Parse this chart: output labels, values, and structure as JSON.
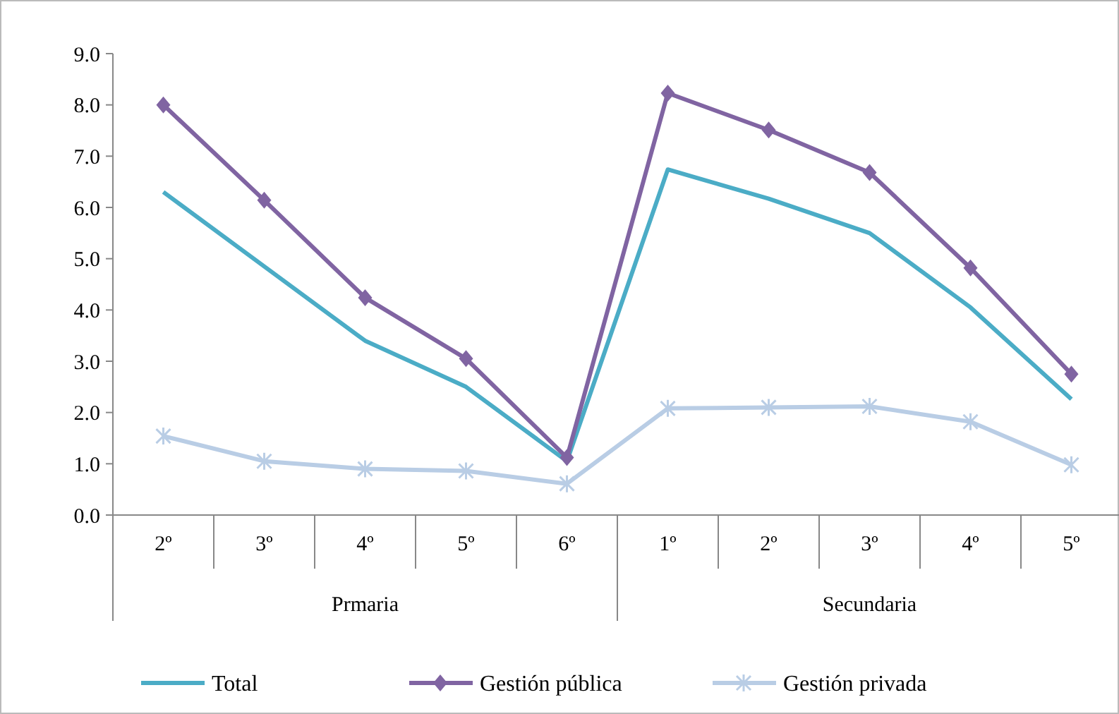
{
  "chart_data": {
    "type": "line",
    "categories": [
      "2º",
      "3º",
      "4º",
      "5º",
      "6º",
      "1º",
      "2º",
      "3º",
      "4º",
      "5º"
    ],
    "annotations": [
      "Prmaria",
      "Secundaria"
    ],
    "ylim": [
      0,
      9
    ],
    "yticks": [
      {
        "value": 0,
        "label": "0.0"
      },
      {
        "value": 1,
        "label": "1.0"
      },
      {
        "value": 2,
        "label": "2.0"
      },
      {
        "value": 3,
        "label": "3.0"
      },
      {
        "value": 4,
        "label": "4.0"
      },
      {
        "value": 5,
        "label": "5.0"
      },
      {
        "value": 6,
        "label": "6.0"
      },
      {
        "value": 7,
        "label": "7.0"
      },
      {
        "value": 8,
        "label": "8.0"
      },
      {
        "value": 9,
        "label": "9.0"
      }
    ],
    "legend": "bottom",
    "grid": false,
    "series": [
      {
        "name": "Total",
        "color": "#4bacc6",
        "marker": "none",
        "values": [
          6.3,
          4.85,
          3.4,
          2.5,
          1.05,
          6.74,
          6.17,
          5.5,
          4.05,
          2.26
        ]
      },
      {
        "name": "Gestión pública",
        "color": "#8064a2",
        "marker": "diamond",
        "values": [
          8.0,
          6.14,
          4.24,
          3.05,
          1.12,
          8.23,
          7.51,
          6.68,
          4.82,
          2.75
        ]
      },
      {
        "name": "Gestión privada",
        "color": "#b9cde5",
        "marker": "cross",
        "values": [
          1.54,
          1.05,
          0.9,
          0.86,
          0.61,
          2.08,
          2.1,
          2.12,
          1.82,
          0.98
        ]
      }
    ]
  }
}
